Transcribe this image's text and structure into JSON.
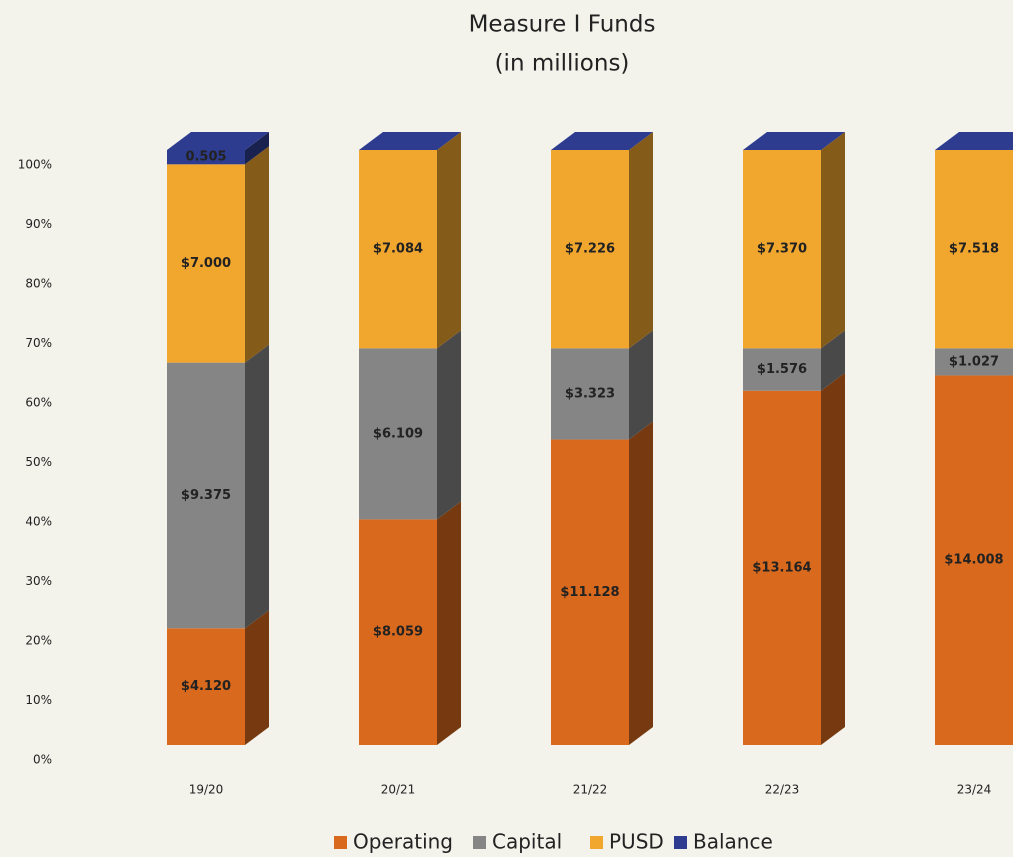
{
  "chart_data": {
    "type": "bar",
    "stacking": "percent",
    "title": "Measure I Funds",
    "subtitle": "(in millions)",
    "categories": [
      "19/20",
      "20/21",
      "21/22",
      "22/23",
      "23/24"
    ],
    "series": [
      {
        "name": "Operating",
        "color": "#d8691d",
        "values": [
          4.12,
          8.059,
          11.128,
          13.164,
          14.008
        ],
        "value_labels": [
          "$4.120",
          "$8.059",
          "$11.128",
          "$13.164",
          "$14.008"
        ]
      },
      {
        "name": "Capital",
        "color": "#858585",
        "values": [
          9.375,
          6.109,
          3.323,
          1.576,
          1.027
        ],
        "value_labels": [
          "$9.375",
          "$6.109",
          "$3.323",
          "$1.576",
          "$1.027"
        ]
      },
      {
        "name": "PUSD",
        "color": "#f1a62e",
        "values": [
          7,
          7.084,
          7.226,
          7.37,
          7.518
        ],
        "value_labels": [
          "$7.000",
          "$7.084",
          "$7.226",
          "$7.370",
          "$7.518"
        ]
      },
      {
        "name": "Balance",
        "color": "#2d3c8e",
        "values": [
          0.505,
          0,
          0,
          0,
          0
        ]
      }
    ],
    "ylim": [
      0,
      100
    ],
    "yticks": [
      {
        "value": 0,
        "label": "0%"
      },
      {
        "value": 10,
        "label": "10%"
      },
      {
        "value": 20,
        "label": "20%"
      },
      {
        "value": 30,
        "label": "30%"
      },
      {
        "value": 40,
        "label": "40%"
      },
      {
        "value": 50,
        "label": "50%"
      },
      {
        "value": 60,
        "label": "60%"
      },
      {
        "value": 70,
        "label": "70%"
      },
      {
        "value": 80,
        "label": "80%"
      },
      {
        "value": 90,
        "label": "90%"
      },
      {
        "value": 100,
        "label": "100%"
      }
    ],
    "legend": "bottom"
  }
}
